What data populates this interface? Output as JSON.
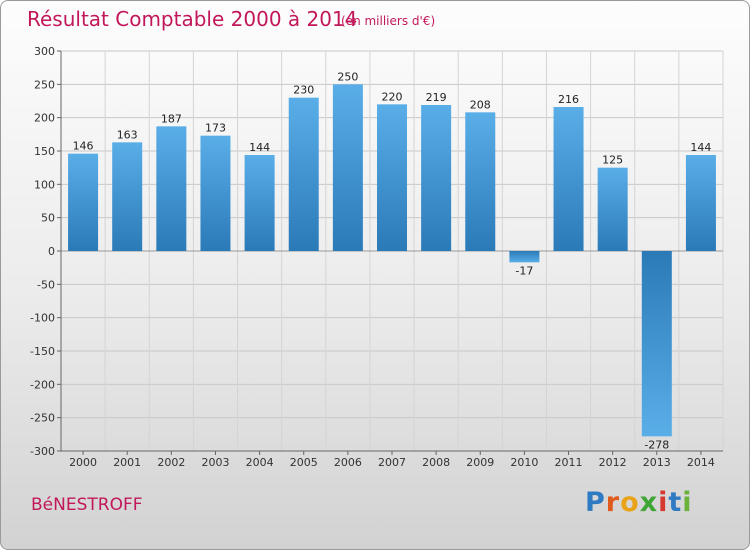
{
  "chart_data": {
    "type": "bar",
    "title": "Résultat Comptable 2000 à 2014",
    "subtitle": "(en milliers d'€)",
    "categories": [
      "2000",
      "2001",
      "2002",
      "2003",
      "2004",
      "2005",
      "2006",
      "2007",
      "2008",
      "2009",
      "2010",
      "2011",
      "2012",
      "2013",
      "2014"
    ],
    "values": [
      146,
      163,
      187,
      173,
      144,
      230,
      250,
      220,
      219,
      208,
      -17,
      216,
      125,
      -278,
      144
    ],
    "value_labels": [
      "146",
      "163",
      "187",
      "173",
      "144",
      "230",
      "250",
      "220",
      "219",
      "208",
      "-17",
      "216",
      "125",
      "-278",
      "144"
    ],
    "ylim": [
      -300,
      300
    ],
    "yticks": [
      300,
      250,
      200,
      150,
      100,
      50,
      0,
      -50,
      -100,
      -150,
      -200,
      -250,
      -300
    ],
    "ytick_labels": [
      "300",
      "250",
      "200",
      "150",
      "100",
      "50",
      "0",
      "-50",
      "-100",
      "-150",
      "-200",
      "-250",
      "-300"
    ],
    "xlabel": "",
    "ylabel": "",
    "grid": true,
    "bar_color": "#3b94d6"
  },
  "commune": "BéNESTROFF",
  "logo": {
    "letters": [
      "P",
      "r",
      "o",
      "x",
      "i",
      "t",
      "i"
    ],
    "colors": [
      "#2e7bc4",
      "#e05a1c",
      "#e8a318",
      "#3fa535",
      "#d63a2f",
      "#2e7bc4",
      "#6bb23a"
    ]
  }
}
